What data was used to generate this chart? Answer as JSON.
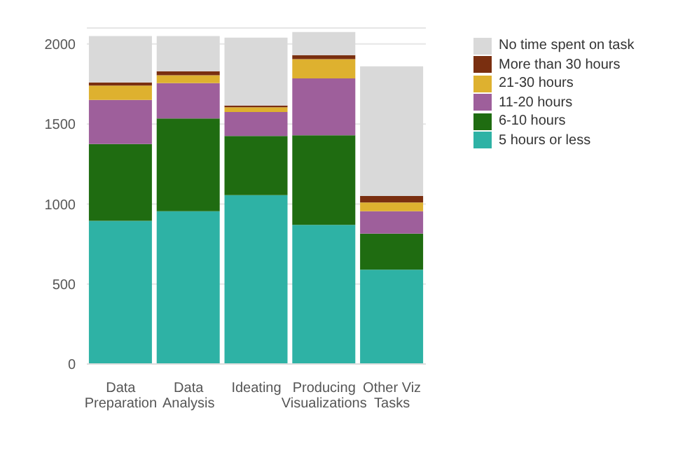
{
  "chart_data": {
    "type": "bar",
    "stacked": true,
    "categories": [
      "Data Preparation",
      "Data Analysis",
      "Ideating",
      "Producing Visualizations",
      "Other Viz Tasks"
    ],
    "series": [
      {
        "name": "5 hours or less",
        "color": "#2eb2a5",
        "values": [
          895,
          955,
          1055,
          870,
          590
        ]
      },
      {
        "name": "6-10 hours",
        "color": "#1f6c11",
        "values": [
          480,
          580,
          370,
          560,
          225
        ]
      },
      {
        "name": "11-20 hours",
        "color": "#9e5f9b",
        "values": [
          275,
          220,
          150,
          355,
          140
        ]
      },
      {
        "name": "21-30 hours",
        "color": "#deb12f",
        "values": [
          90,
          50,
          30,
          120,
          55
        ]
      },
      {
        "name": "More than 30 hours",
        "color": "#7a2f10",
        "values": [
          20,
          25,
          10,
          25,
          40
        ]
      },
      {
        "name": "No time spent on task",
        "color": "#d9d9d9",
        "values": [
          290,
          220,
          425,
          145,
          810
        ]
      }
    ],
    "ylim": [
      0,
      2100
    ],
    "yticks": [
      0,
      500,
      1000,
      1500,
      2000
    ],
    "grid": "y",
    "legend": "top right"
  }
}
